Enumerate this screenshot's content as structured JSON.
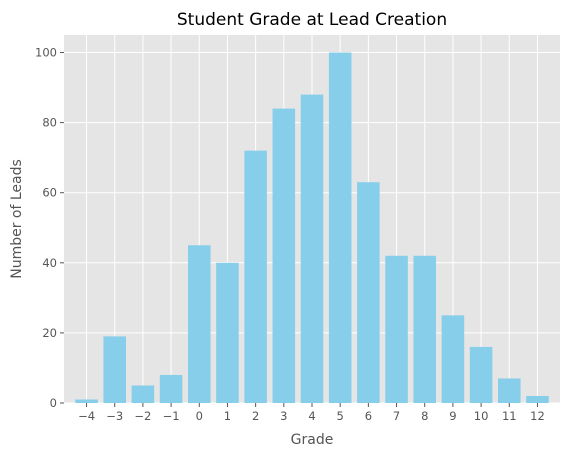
{
  "chart_data": {
    "type": "bar",
    "title": "Student Grade at Lead Creation",
    "xlabel": "Grade",
    "ylabel": "Number of Leads",
    "categories": [
      "−4",
      "−3",
      "−2",
      "−1",
      "0",
      "1",
      "2",
      "3",
      "4",
      "5",
      "6",
      "7",
      "8",
      "9",
      "10",
      "11",
      "12"
    ],
    "values": [
      1,
      19,
      5,
      8,
      45,
      40,
      72,
      84,
      88,
      100,
      63,
      42,
      42,
      25,
      16,
      7,
      2
    ],
    "ylim": [
      0,
      105
    ],
    "yticks": [
      0,
      20,
      40,
      60,
      80,
      100
    ],
    "grid": true,
    "colors": {
      "bar": "#87ceeb",
      "plot_background": "#e5e5e5",
      "grid": "#ffffff"
    }
  }
}
